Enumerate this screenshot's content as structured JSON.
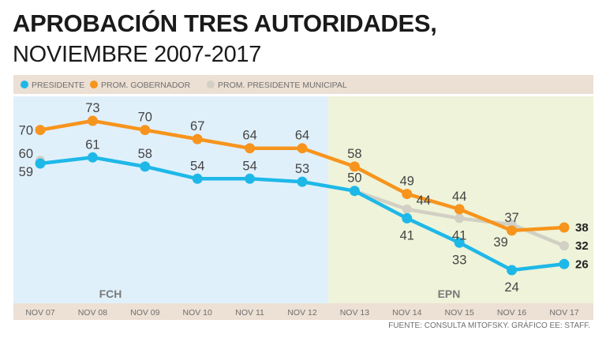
{
  "title_line1": "APROBACIÓN TRES AUTORIDADES,",
  "title_line2": "NOVIEMBRE 2007-2017",
  "source": "FUENTE: CONSULTA MITOFSKY. GRÁFICO EE: STAFF.",
  "colors": {
    "presidente": "#1eb8e8",
    "gobernador": "#f7941d",
    "municipal": "#d2d0c4",
    "fch_bg": "#e0f0fb",
    "epn_bg": "#eef3d9",
    "legend_bg": "#ecdfd3",
    "axis_bg": "#ede0d4"
  },
  "chart_data": {
    "type": "line",
    "categories": [
      "NOV 07",
      "NOV 08",
      "NOV 09",
      "NOV 10",
      "NOV 11",
      "NOV 12",
      "NOV 13",
      "NOV 14",
      "NOV 15",
      "NOV 16",
      "NOV 17"
    ],
    "series": [
      {
        "name": "PRESIDENTE",
        "key": "presidente",
        "values": [
          59,
          61,
          58,
          54,
          54,
          53,
          50,
          41,
          33,
          24,
          26
        ]
      },
      {
        "name": "PROM. GOBERNADOR",
        "key": "gobernador",
        "values": [
          70,
          73,
          70,
          67,
          64,
          64,
          58,
          49,
          44,
          37,
          38
        ]
      },
      {
        "name": "PROM. PRESIDENTE MUNICIPAL",
        "key": "municipal",
        "values": [
          60,
          null,
          null,
          null,
          null,
          null,
          50,
          44,
          41,
          39,
          32
        ]
      }
    ],
    "periods": [
      {
        "label": "FCH",
        "from": "NOV 07",
        "to": "NOV 12"
      },
      {
        "label": "EPN",
        "from": "NOV 13",
        "to": "NOV 17"
      }
    ],
    "ylim": [
      15,
      80
    ],
    "title": "APROBACIÓN TRES AUTORIDADES, NOVIEMBRE 2007-2017",
    "legend_position": "top"
  }
}
